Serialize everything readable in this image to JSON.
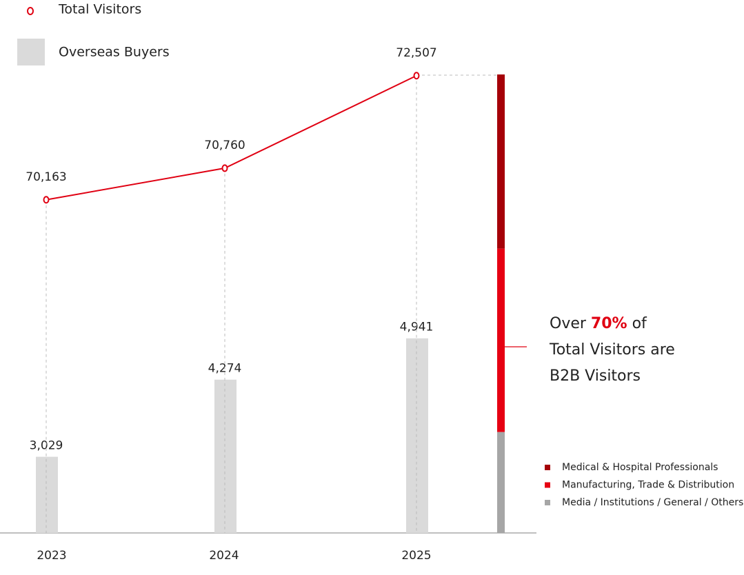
{
  "chart_data": [
    {
      "type": "combo",
      "x": [
        "2023",
        "2024",
        "2025"
      ],
      "series": [
        {
          "name": "Total Visitors",
          "type": "line",
          "color": "#e00012",
          "axis": "y2",
          "values": [
            70163,
            70760,
            72507
          ],
          "value_labels": [
            "70,163",
            "70,760",
            "72,507"
          ]
        },
        {
          "name": "Overseas Buyers",
          "type": "bar",
          "color": "#dadada",
          "values": [
            3029,
            4274,
            4941
          ],
          "value_labels": [
            "3,029",
            "4,274",
            "4,941"
          ]
        }
      ],
      "ylim": [
        1800,
        9200
      ],
      "y2lim": [
        63870,
        72530
      ]
    },
    {
      "type": "stacked_bar",
      "series": [
        {
          "name": "Medical & Hospital Professionals",
          "color": "#a50008",
          "values": [
            38
          ]
        },
        {
          "name": "Manufacturing, Trade & Distribution",
          "color": "#e60012",
          "values": [
            40
          ]
        },
        {
          "name": "Media / Institutions / General / Others",
          "color": "#a6a6a6",
          "values": [
            22
          ]
        }
      ],
      "ylim": [
        0,
        100
      ],
      "annotation": [
        "Over",
        "70%",
        "of",
        "Total Visitors are",
        "B2B Visitors"
      ]
    }
  ]
}
